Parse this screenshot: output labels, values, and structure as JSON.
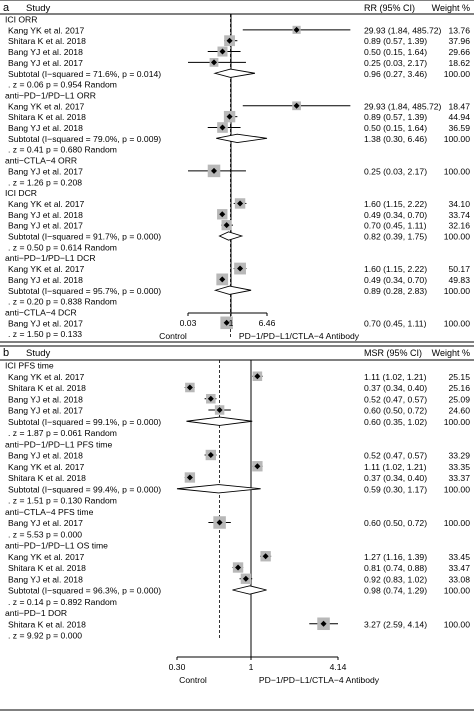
{
  "chart_data": [
    {
      "type": "forest",
      "panel": "a",
      "header": {
        "study": "Study",
        "effect": "RR (95% CI)",
        "weight": "Weight %"
      },
      "xscale": "log",
      "xticks": [
        "0.03",
        "1",
        "6.46"
      ],
      "xrange": [
        0.03,
        6.46
      ],
      "xlabel_left": "Control",
      "xlabel_right": "PD−1/PD−L1/CTLA−4 Antibody",
      "rows": [
        {
          "kind": "group",
          "label": "ICI ORR"
        },
        {
          "kind": "study",
          "label": "Kang YK et al. 2017",
          "est": 29.93,
          "lo": 1.84,
          "hi": 485.72,
          "ci": "29.93 (1.84, 485.72)",
          "weight": "13.76",
          "w": 13.76
        },
        {
          "kind": "study",
          "label": "Shitara K et al. 2018",
          "est": 0.89,
          "lo": 0.57,
          "hi": 1.39,
          "ci": "0.89 (0.57, 1.39)",
          "weight": "37.96",
          "w": 37.96
        },
        {
          "kind": "study",
          "label": "Bang YJ et al. 2018",
          "est": 0.5,
          "lo": 0.15,
          "hi": 1.64,
          "ci": "0.50 (0.15, 1.64)",
          "weight": "29.66",
          "w": 29.66
        },
        {
          "kind": "study",
          "label": "Bang YJ et al. 2017",
          "est": 0.25,
          "lo": 0.03,
          "hi": 2.17,
          "ci": "0.25 (0.03, 2.17)",
          "weight": "18.62",
          "w": 18.62
        },
        {
          "kind": "subtotal",
          "label": "Subtotal  (I−squared = 71.6%, p = 0.014)",
          "est": 0.96,
          "lo": 0.27,
          "hi": 3.46,
          "ci": "0.96 (0.27, 3.46)",
          "weight": "100.00"
        },
        {
          "kind": "note",
          "label": ". z = 0.06  p = 0.954   Random"
        },
        {
          "kind": "group",
          "label": "anti−PD−1/PD−L1 ORR"
        },
        {
          "kind": "study",
          "label": "Kang YK et al. 2017",
          "est": 29.93,
          "lo": 1.84,
          "hi": 485.72,
          "ci": "29.93 (1.84, 485.72)",
          "weight": "18.47",
          "w": 18.47
        },
        {
          "kind": "study",
          "label": "Shitara K et al. 2018",
          "est": 0.89,
          "lo": 0.57,
          "hi": 1.39,
          "ci": "0.89 (0.57, 1.39)",
          "weight": "44.94",
          "w": 44.94
        },
        {
          "kind": "study",
          "label": "Bang YJ et al. 2018",
          "est": 0.5,
          "lo": 0.15,
          "hi": 1.64,
          "ci": "0.50 (0.15, 1.64)",
          "weight": "36.59",
          "w": 36.59
        },
        {
          "kind": "subtotal",
          "label": "Subtotal  (I−squared = 79.0%, p = 0.009)",
          "est": 1.38,
          "lo": 0.3,
          "hi": 6.46,
          "ci": "1.38 (0.30, 6.46)",
          "weight": "100.00"
        },
        {
          "kind": "note",
          "label": ". z = 0.41  p = 0.680   Random"
        },
        {
          "kind": "group",
          "label": "anti−CTLA−4 ORR"
        },
        {
          "kind": "study",
          "label": "Bang YJ et al. 2017",
          "est": 0.25,
          "lo": 0.03,
          "hi": 2.17,
          "ci": "0.25 (0.03, 2.17)",
          "weight": "100.00",
          "w": 60
        },
        {
          "kind": "note",
          "label": ". z = 1.26  p = 0.208"
        },
        {
          "kind": "group",
          "label": "ICI DCR"
        },
        {
          "kind": "study",
          "label": "Kang YK et al. 2017",
          "est": 1.6,
          "lo": 1.15,
          "hi": 2.22,
          "ci": "1.60 (1.15, 2.22)",
          "weight": "34.10",
          "w": 34.1
        },
        {
          "kind": "study",
          "label": "Bang YJ et al. 2018",
          "est": 0.49,
          "lo": 0.34,
          "hi": 0.7,
          "ci": "0.49 (0.34, 0.70)",
          "weight": "33.74",
          "w": 33.74
        },
        {
          "kind": "study",
          "label": "Bang YJ et al. 2017",
          "est": 0.7,
          "lo": 0.45,
          "hi": 1.11,
          "ci": "0.70 (0.45, 1.11)",
          "weight": "32.16",
          "w": 32.16
        },
        {
          "kind": "subtotal",
          "label": "Subtotal  (I−squared = 91.7%, p = 0.000)",
          "est": 0.82,
          "lo": 0.39,
          "hi": 1.75,
          "ci": "0.82 (0.39, 1.75)",
          "weight": "100.00"
        },
        {
          "kind": "note",
          "label": ". z = 0.50  p = 0.614   Random"
        },
        {
          "kind": "group",
          "label": "anti−PD−1/PD−L1 DCR"
        },
        {
          "kind": "study",
          "label": "Kang YK et al. 2017",
          "est": 1.6,
          "lo": 1.15,
          "hi": 2.22,
          "ci": "1.60 (1.15, 2.22)",
          "weight": "50.17",
          "w": 50.17
        },
        {
          "kind": "study",
          "label": "Bang YJ et al. 2018",
          "est": 0.49,
          "lo": 0.34,
          "hi": 0.7,
          "ci": "0.49 (0.34, 0.70)",
          "weight": "49.83",
          "w": 49.83
        },
        {
          "kind": "subtotal",
          "label": "Subtotal  (I−squared = 95.7%, p = 0.000)",
          "est": 0.89,
          "lo": 0.28,
          "hi": 2.83,
          "ci": "0.89 (0.28, 2.83)",
          "weight": "100.00"
        },
        {
          "kind": "note",
          "label": ". z = 0.20  p = 0.838   Random"
        },
        {
          "kind": "group",
          "label": "anti−CTLA−4 DCR"
        },
        {
          "kind": "study",
          "label": "Bang YJ et al. 2017",
          "est": 0.7,
          "lo": 0.45,
          "hi": 1.11,
          "ci": "0.70 (0.45, 1.11)",
          "weight": "100.00",
          "w": 60
        },
        {
          "kind": "note",
          "label": ". z = 1.50  p = 0.133"
        }
      ]
    },
    {
      "type": "forest",
      "panel": "b",
      "header": {
        "study": "Study",
        "effect": "MSR (95% CI)",
        "weight": "Weight %"
      },
      "xscale": "log",
      "xticks": [
        "0.30",
        "1",
        "4.14"
      ],
      "xrange": [
        0.3,
        4.14
      ],
      "xlabel_left": "Control",
      "xlabel_right": "PD−1/PD−L1/CTLA−4 Antibody",
      "rows": [
        {
          "kind": "group",
          "label": "ICI PFS time"
        },
        {
          "kind": "study",
          "label": "Kang YK et al. 2017",
          "est": 1.11,
          "lo": 1.02,
          "hi": 1.21,
          "ci": "1.11 (1.02, 1.21)",
          "weight": "25.15",
          "w": 25.15
        },
        {
          "kind": "study",
          "label": "Shitara K et al. 2018",
          "est": 0.37,
          "lo": 0.34,
          "hi": 0.4,
          "ci": "0.37 (0.34, 0.40)",
          "weight": "25.16",
          "w": 25.16
        },
        {
          "kind": "study",
          "label": "Bang YJ et al. 2018",
          "est": 0.52,
          "lo": 0.47,
          "hi": 0.57,
          "ci": "0.52 (0.47, 0.57)",
          "weight": "25.09",
          "w": 25.09
        },
        {
          "kind": "study",
          "label": "Bang YJ et al. 2017",
          "est": 0.6,
          "lo": 0.5,
          "hi": 0.72,
          "ci": "0.60 (0.50, 0.72)",
          "weight": "24.60",
          "w": 24.6
        },
        {
          "kind": "subtotal",
          "label": "Subtotal  (I−squared = 99.1%, p = 0.000)",
          "est": 0.6,
          "lo": 0.35,
          "hi": 1.02,
          "ci": "0.60 (0.35, 1.02)",
          "weight": "100.00"
        },
        {
          "kind": "note",
          "label": ". z = 1.87  p = 0.061   Random"
        },
        {
          "kind": "group",
          "label": "anti−PD−1/PD−L1 PFS time"
        },
        {
          "kind": "study",
          "label": "Bang YJ et al. 2018",
          "est": 0.52,
          "lo": 0.47,
          "hi": 0.57,
          "ci": "0.52 (0.47, 0.57)",
          "weight": "33.29",
          "w": 33.29
        },
        {
          "kind": "study",
          "label": "Kang YK et al. 2017",
          "est": 1.11,
          "lo": 1.02,
          "hi": 1.21,
          "ci": "1.11 (1.02, 1.21)",
          "weight": "33.35",
          "w": 33.35
        },
        {
          "kind": "study",
          "label": "Shitara K et al. 2018",
          "est": 0.37,
          "lo": 0.34,
          "hi": 0.4,
          "ci": "0.37 (0.34, 0.40)",
          "weight": "33.37",
          "w": 33.37
        },
        {
          "kind": "subtotal",
          "label": "Subtotal  (I−squared = 99.4%, p = 0.000)",
          "est": 0.59,
          "lo": 0.3,
          "hi": 1.17,
          "ci": "0.59 (0.30, 1.17)",
          "weight": "100.00"
        },
        {
          "kind": "note",
          "label": ". z = 1.51  p = 0.130   Random"
        },
        {
          "kind": "group",
          "label": "anti−CTLA−4 PFS time"
        },
        {
          "kind": "study",
          "label": "Bang YJ et al. 2017",
          "est": 0.6,
          "lo": 0.5,
          "hi": 0.72,
          "ci": "0.60 (0.50, 0.72)",
          "weight": "100.00",
          "w": 60
        },
        {
          "kind": "note",
          "label": ". z = 5.53  p = 0.000"
        },
        {
          "kind": "group",
          "label": "anti−PD−1/PD−L1 OS time"
        },
        {
          "kind": "study",
          "label": "Kang YK et al. 2017",
          "est": 1.27,
          "lo": 1.16,
          "hi": 1.39,
          "ci": "1.27 (1.16, 1.39)",
          "weight": "33.45",
          "w": 33.45
        },
        {
          "kind": "study",
          "label": "Shitara K et al. 2018",
          "est": 0.81,
          "lo": 0.74,
          "hi": 0.88,
          "ci": "0.81 (0.74, 0.88)",
          "weight": "33.47",
          "w": 33.47
        },
        {
          "kind": "study",
          "label": "Bang YJ et al. 2018",
          "est": 0.92,
          "lo": 0.83,
          "hi": 1.02,
          "ci": "0.92 (0.83, 1.02)",
          "weight": "33.08",
          "w": 33.08
        },
        {
          "kind": "subtotal",
          "label": "Subtotal  (I−squared = 96.3%, p = 0.000)",
          "est": 0.98,
          "lo": 0.74,
          "hi": 1.29,
          "ci": "0.98 (0.74, 1.29)",
          "weight": "100.00"
        },
        {
          "kind": "note",
          "label": ". z = 0.14  p = 0.892   Random"
        },
        {
          "kind": "group",
          "label": "anti−PD−1 DOR"
        },
        {
          "kind": "study",
          "label": "Shitara K et al. 2018",
          "est": 3.27,
          "lo": 2.59,
          "hi": 4.14,
          "ci": "3.27 (2.59, 4.14)",
          "weight": "100.00",
          "w": 60
        },
        {
          "kind": "note",
          "label": ". z = 9.92  p = 0.000"
        }
      ]
    }
  ],
  "panels": {
    "a": "a",
    "b": "b"
  }
}
